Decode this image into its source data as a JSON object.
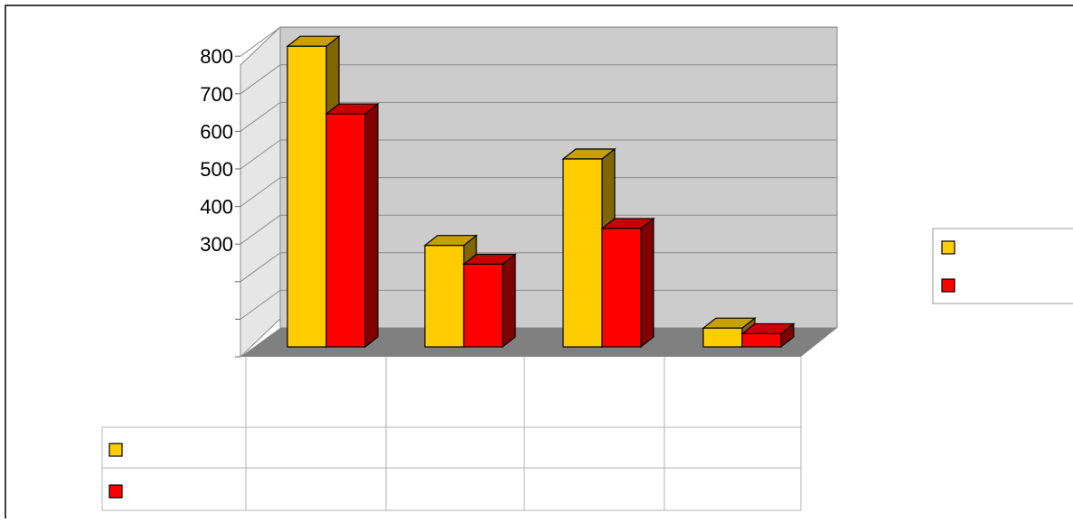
{
  "chart_data": {
    "type": "bar",
    "style": "3d-clustered-column",
    "categories": [
      "",
      "",
      "",
      ""
    ],
    "series": [
      {
        "color": "#ffcc00",
        "values": [
          800,
          270,
          500,
          50
        ]
      },
      {
        "color": "#ff0000",
        "values": [
          620,
          220,
          315,
          35
        ]
      }
    ],
    "y_ticks": [
      "",
      "",
      "",
      "300",
      "400",
      "500",
      "600",
      "700",
      "800"
    ],
    "ylim": [
      0,
      800
    ],
    "grid": true,
    "legend": "right",
    "data_table": true,
    "colors": {
      "wall": "#cccccc",
      "floor": "#808080",
      "outline": "#000000"
    }
  }
}
